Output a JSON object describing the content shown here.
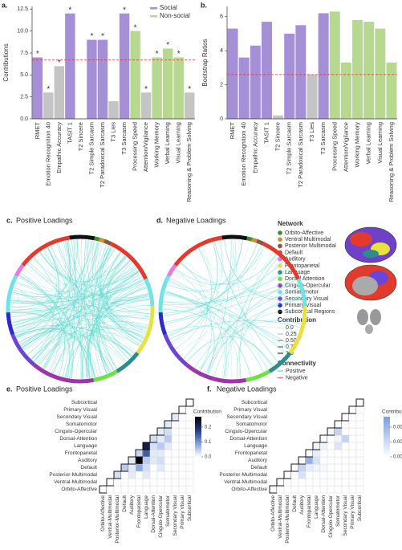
{
  "chart_data": [
    {
      "type": "bar",
      "panel": "a.",
      "ylabel": "Contributions",
      "categories": [
        "RMET",
        "Emotion Recognition 40",
        "Empathic Accuracy",
        "TASIT 1",
        "T2 Sincere",
        "T2 Simple Sarcasm",
        "T2 Paradoxical Sarcasm",
        "T3 Lies",
        "T3 Sarcasm",
        "Processing Speed",
        "Attention/Vigilance",
        "Working Memory",
        "Verbal Learning",
        "Visual Learning",
        "Reasoning & Problem Solving"
      ],
      "values": [
        7,
        3,
        6,
        12,
        0,
        9,
        9,
        2,
        12,
        10,
        3,
        7,
        8,
        7,
        3
      ],
      "colors": [
        "#a590d8",
        "#c4c4c4",
        "#c4c4c4",
        "#a590d8",
        "#c4c4c4",
        "#a590d8",
        "#a590d8",
        "#c4c4c4",
        "#a590d8",
        "#b6d98f",
        "#c4c4c4",
        "#b6d98f",
        "#b6d98f",
        "#b6d98f",
        "#c4c4c4"
      ],
      "stars": [
        "*",
        "*",
        "*",
        "*",
        null,
        "*",
        "*",
        null,
        "*",
        "*",
        "*",
        "*",
        "*",
        "*",
        "*"
      ],
      "reference_line": 6.7,
      "reference_color": "#e03030",
      "ylim": [
        0,
        12.8
      ],
      "yticks": [
        {
          "value": 0,
          "label": "0.0"
        },
        2.5,
        {
          "value": 5,
          "label": "5.0"
        },
        7.5,
        {
          "value": 10,
          "label": "10.0"
        },
        12.5
      ],
      "legend": [
        {
          "name": "Social",
          "color": "#a590d8"
        },
        {
          "name": "Non-social",
          "color": "#b6d98f"
        }
      ]
    },
    {
      "type": "bar",
      "panel": "b.",
      "ylabel": "Bootstrap Ratios",
      "categories": [
        "RMET",
        "Emotion Recognition 40",
        "Empathic Accuracy",
        "TASIT 1",
        "T2 Sincere",
        "T2 Simple Sarcasm",
        "T2 Paradoxical Sarcasm",
        "T3 Lies",
        "T3 Sarcasm",
        "Processing Speed",
        "Attention/Vigilance",
        "Working Memory",
        "Verbal Learning",
        "Visual Learning",
        "Reasoning & Problem Solving"
      ],
      "values": [
        5.3,
        3.6,
        4.3,
        5.7,
        0.2,
        5.0,
        5.5,
        2.6,
        6.2,
        6.3,
        3.3,
        5.8,
        5.7,
        5.3,
        3.3
      ],
      "colors": [
        "#a590d8",
        "#a590d8",
        "#a590d8",
        "#a590d8",
        "#c4c4c4",
        "#a590d8",
        "#a590d8",
        "#c4c4c4",
        "#a590d8",
        "#b6d98f",
        "#b6d98f",
        "#b6d98f",
        "#b6d98f",
        "#b6d98f",
        "#b6d98f"
      ],
      "reference_line": 2.6,
      "reference_color": "#e03030",
      "ylim": [
        0,
        6.6
      ],
      "yticks": [
        0,
        2,
        4,
        6
      ]
    },
    {
      "type": "chord",
      "panel": "c.",
      "title": "Positive Loadings",
      "chord_color": "#5fd9cf",
      "chord_count": 160,
      "network_title": "Network",
      "networks": [
        {
          "name": "Orbito-Affective",
          "color": "#3f8a33"
        },
        {
          "name": "Ventral Multimodal",
          "color": "#c8902e"
        },
        {
          "name": "Posterior Multimodal",
          "color": "#8b5a3c"
        },
        {
          "name": "Default",
          "color": "#e23b2e"
        },
        {
          "name": "Auditory",
          "color": "#e77ae0"
        },
        {
          "name": "Frontoparietal",
          "color": "#e8e23f"
        },
        {
          "name": "Language",
          "color": "#2f8c8c"
        },
        {
          "name": "Dorsal Attention",
          "color": "#6ee048"
        },
        {
          "name": "Cingulo-Opercular",
          "color": "#9b35a8"
        },
        {
          "name": "Somatomotor",
          "color": "#6fe3e8"
        },
        {
          "name": "Secondary Visual",
          "color": "#6a45d8"
        },
        {
          "name": "Primary Visual",
          "color": "#2a2ad0"
        },
        {
          "name": "Subcortical Regions",
          "color": "#111111"
        }
      ],
      "contribution_title": "Contribution",
      "contribution_legend": [
        {
          "value": 0,
          "label": "0.0"
        },
        0.25,
        {
          "value": 0.5,
          "label": "0.50"
        },
        0.75,
        {
          "value": 1,
          "label": "1.0"
        }
      ],
      "connectivity_title": "Connectivity",
      "connectivity": [
        {
          "name": "Positive",
          "color": "#5fd9cf"
        },
        {
          "name": "Negative",
          "color": "#f06080"
        }
      ]
    },
    {
      "type": "chord",
      "panel": "d.",
      "title": "Negative Loadings",
      "chord_color": "#5fd9cf",
      "chord_count": 60
    },
    {
      "type": "heatmap",
      "panel": "e.",
      "title": "Positive Loadings",
      "colorbar_title": "Contribution",
      "labels": [
        "Orbito-Affective",
        "Ventral-Multimodal",
        "Posterior-Multimodal",
        "Default",
        "Auditory",
        "Frontoparietal",
        "Language",
        "Dorsal-Attention",
        "Cingulo-Opercular",
        "Somatomotor",
        "Secondary Visual",
        "Primary Visual",
        "Subcortical"
      ],
      "values": [
        [
          0,
          0,
          0,
          0,
          0,
          0,
          0,
          0,
          0,
          0,
          0,
          0,
          0
        ],
        [
          0,
          0,
          0,
          0,
          0,
          0,
          0,
          0,
          0,
          0,
          0,
          0
        ],
        [
          0.03,
          0,
          0.02,
          0,
          0.02,
          0,
          0,
          0,
          0,
          0,
          0
        ],
        [
          0.05,
          0.02,
          0.08,
          0.03,
          0,
          0.02,
          0,
          0,
          0,
          0
        ],
        [
          0.02,
          0.27,
          0.05,
          0.02,
          0.03,
          0,
          0,
          0,
          0
        ],
        [
          0.04,
          0.15,
          0.02,
          0.02,
          0,
          0,
          0,
          0
        ],
        [
          0.22,
          0.03,
          0.05,
          0.02,
          0,
          0,
          0
        ],
        [
          0.03,
          0.02,
          0.05,
          0,
          0,
          0
        ],
        [
          0.02,
          0.03,
          0,
          0,
          0
        ],
        [
          0.02,
          0,
          0,
          0
        ],
        [
          0.02,
          0,
          0
        ],
        [
          0,
          0
        ],
        [
          0
        ]
      ],
      "clim": [
        0,
        0.27
      ],
      "cticks": [
        {
          "value": 0,
          "label": "0.0"
        },
        0.1,
        0.2
      ],
      "colors": [
        "#ffffff",
        "#7fa0e0",
        "#243a80",
        "#000000"
      ]
    },
    {
      "type": "heatmap",
      "panel": "f.",
      "title": "Negative Loadings",
      "colorbar_title": "Contribution",
      "labels": [
        "Orbito-Affective",
        "Ventral-Multimodal",
        "Posterior-Multimodal",
        "Default",
        "Auditory",
        "Frontoparietal",
        "Language",
        "Dorsal-Attention",
        "Cingulo-Opercular",
        "Somatomotor",
        "Secondary Visual",
        "Primary Visual",
        "Subcortical"
      ],
      "values": [
        [
          0,
          0,
          0,
          0,
          0,
          0,
          0,
          0,
          0,
          0,
          0,
          0,
          0
        ],
        [
          0,
          0,
          0,
          0,
          0,
          0,
          0,
          0,
          0,
          0,
          0,
          0
        ],
        [
          0,
          0,
          0.0008,
          0,
          0,
          0,
          0,
          0,
          0,
          0,
          0
        ],
        [
          0,
          0.0012,
          0.0005,
          0.0003,
          0.0002,
          0,
          0,
          0,
          0,
          0
        ],
        [
          0,
          0.0022,
          0.0008,
          0,
          0,
          0,
          0,
          0,
          0
        ],
        [
          0,
          0.0005,
          0,
          0,
          0,
          0,
          0,
          0
        ],
        [
          0.0003,
          0.0003,
          0,
          0.0007,
          0,
          0,
          0
        ],
        [
          0,
          0,
          0.0003,
          0.0012,
          0,
          0
        ],
        [
          0.0002,
          0.0012,
          0,
          0,
          0
        ],
        [
          0,
          0,
          0,
          0
        ],
        [
          0,
          0,
          0
        ],
        [
          0,
          0
        ],
        [
          0
        ]
      ],
      "clim": [
        0,
        0.0027
      ],
      "cticks": [
        {
          "value": 0,
          "label": "0.000"
        },
        {
          "value": 0.001,
          "label": "0.001"
        },
        {
          "value": 0.002,
          "label": "0.002"
        }
      ],
      "colors": [
        "#ffffff",
        "#7b9ee2"
      ]
    }
  ]
}
